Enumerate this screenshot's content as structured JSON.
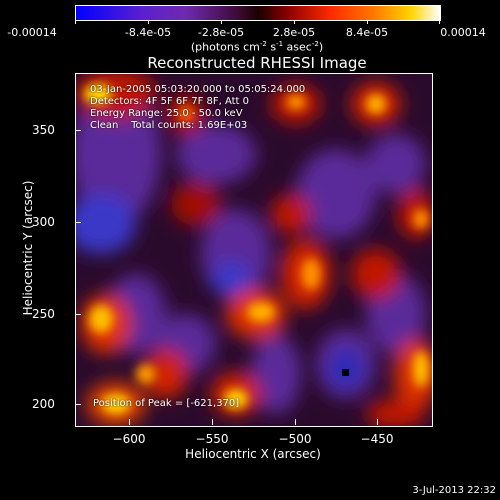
{
  "colorbar": {
    "labels": [
      "-0.00014",
      "-8.4e-05",
      "-2.8e-05",
      "2.8e-05",
      "8.4e-05",
      "0.00014"
    ],
    "units_main": "(photons cm",
    "units_exp1": "-2",
    "units_mid1": " s",
    "units_exp2": "-1",
    "units_mid2": " asec",
    "units_exp3": "-2",
    "units_end": ")"
  },
  "title": "Reconstructed RHESSI Image",
  "info": {
    "time_range": "03-Jan-2005 05:03:20.000 to 05:05:24.000",
    "detectors": "Detectors: 4F 5F 6F 7F 8F, Att 0",
    "energy": "Energy Range: 25.0 - 50.0 keV",
    "clean": "Clean    Total counts: 1.69E+03"
  },
  "peak": "Position of Peak = [-621,370]",
  "x_axis": {
    "title": "Heliocentric X (arcsec)",
    "ticks": [
      "−600",
      "−550",
      "−500",
      "−450"
    ]
  },
  "y_axis": {
    "title": "Heliocentric Y (arcsec)",
    "ticks": [
      "200",
      "250",
      "300",
      "350"
    ]
  },
  "timestamp": "3-Jul-2013 22:32"
}
